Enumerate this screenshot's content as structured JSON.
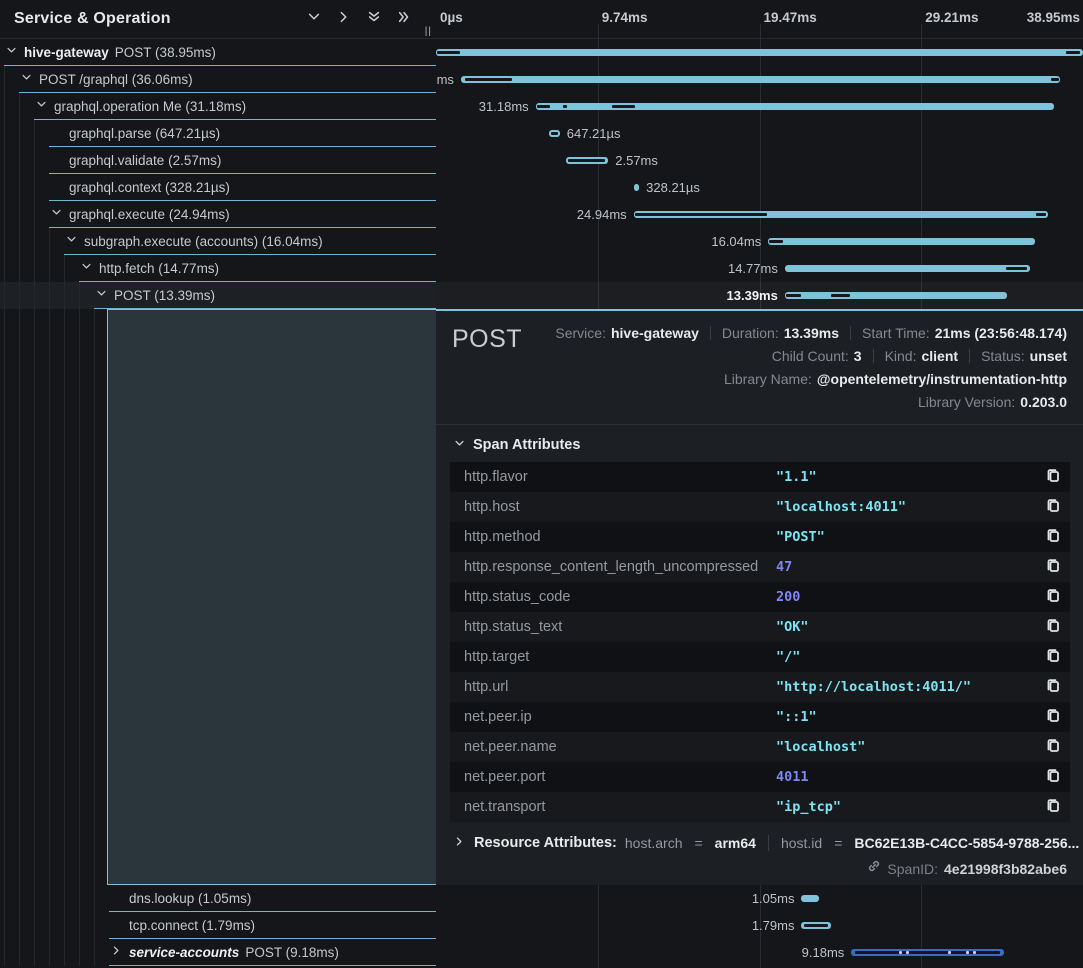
{
  "header": {
    "title": "Service & Operation",
    "icons": [
      "chevron-down",
      "chevron-right",
      "double-chevron-down",
      "double-chevron-right"
    ],
    "resize_handle": "||"
  },
  "timeline": {
    "total_ms": 38.95,
    "ticks": [
      "0µs",
      "9.74ms",
      "19.47ms",
      "29.21ms",
      "38.95ms"
    ],
    "bar_color": "#7ec3da",
    "alt_bar_color": "#3d6ac0"
  },
  "spans": [
    {
      "service": "hive-gateway",
      "label": "POST (38.95ms)",
      "level": 0,
      "chevron": "down",
      "start_ms": 0,
      "end_ms": 38.95,
      "dur_label": "38.95ms",
      "label_side": "left",
      "marks": [
        [
          0.05,
          1.45
        ],
        [
          37.9,
          38.8
        ]
      ]
    },
    {
      "label": "POST /graphql (36.06ms)",
      "level": 1,
      "chevron": "down",
      "start_ms": 1.5,
      "end_ms": 37.56,
      "dur_label": "36.06ms",
      "label_side": "left",
      "marks": [
        [
          1.75,
          4.6
        ],
        [
          37.0,
          37.5
        ]
      ]
    },
    {
      "label": "graphql.operation Me (31.18ms)",
      "level": 2,
      "chevron": "down",
      "start_ms": 6.0,
      "end_ms": 37.18,
      "dur_label": "31.18ms",
      "label_side": "left",
      "marks": [
        [
          6.1,
          6.85
        ],
        [
          7.65,
          7.9
        ],
        [
          10.6,
          12.0
        ]
      ]
    },
    {
      "label": "graphql.parse (647.21µs)",
      "level": 3,
      "chevron": null,
      "start_ms": 6.8,
      "end_ms": 7.45,
      "dur_label": "647.21µs",
      "label_side": "right",
      "marks": [
        [
          6.93,
          7.33
        ]
      ]
    },
    {
      "label": "graphql.validate (2.57ms)",
      "level": 3,
      "chevron": null,
      "start_ms": 7.8,
      "end_ms": 10.37,
      "dur_label": "2.57ms",
      "label_side": "right",
      "marks": [
        [
          7.95,
          10.2
        ]
      ]
    },
    {
      "label": "graphql.context (328.21µs)",
      "level": 3,
      "chevron": null,
      "start_ms": 11.9,
      "end_ms": 12.23,
      "dur_label": "328.21µs",
      "label_side": "right",
      "marks": []
    },
    {
      "label": "graphql.execute (24.94ms)",
      "level": 3,
      "chevron": "down",
      "start_ms": 11.9,
      "end_ms": 36.84,
      "dur_label": "24.94ms",
      "label_side": "left",
      "marks": [
        [
          12.0,
          19.9
        ],
        [
          36.1,
          36.75
        ]
      ]
    },
    {
      "label": "subgraph.execute (accounts) (16.04ms)",
      "level": 4,
      "chevron": "down",
      "start_ms": 20.0,
      "end_ms": 36.04,
      "dur_label": "16.04ms",
      "label_side": "left",
      "marks": [
        [
          20.05,
          20.9
        ]
      ]
    },
    {
      "label": "http.fetch (14.77ms)",
      "level": 5,
      "chevron": "down",
      "start_ms": 21.0,
      "end_ms": 35.77,
      "dur_label": "14.77ms",
      "label_side": "left",
      "marks": [
        [
          34.3,
          35.6
        ]
      ]
    },
    {
      "label": "POST (13.39ms)",
      "level": 6,
      "chevron": "down",
      "start_ms": 21.0,
      "end_ms": 34.39,
      "dur_label": "13.39ms",
      "label_side": "left",
      "selected": true,
      "marks": [
        [
          21.05,
          21.95
        ],
        [
          23.8,
          24.9
        ]
      ]
    },
    {
      "label": "dns.lookup (1.05ms)",
      "level": 7,
      "chevron": null,
      "start_ms": 22.0,
      "end_ms": 23.05,
      "dur_label": "1.05ms",
      "label_side": "left",
      "marks": [],
      "after_detail": true
    },
    {
      "label": "tcp.connect (1.79ms)",
      "level": 7,
      "chevron": null,
      "start_ms": 22.0,
      "end_ms": 23.79,
      "dur_label": "1.79ms",
      "label_side": "left",
      "marks": [
        [
          22.15,
          23.6
        ]
      ],
      "after_detail": true
    },
    {
      "service": "service-accounts",
      "service_italic": true,
      "label": "POST (9.18ms)",
      "level": 7,
      "chevron": "right",
      "start_ms": 25.0,
      "end_ms": 34.18,
      "dur_label": "9.18ms",
      "label_side": "left",
      "color": "#3d6ac0",
      "marks": [
        [
          25.2,
          33.95
        ]
      ],
      "light_marks": [
        27.9,
        28.3,
        30.8,
        31.9,
        32.3
      ],
      "after_detail": true
    }
  ],
  "detail": {
    "title": "POST",
    "meta_lines": [
      [
        {
          "label": "Service:",
          "value": "hive-gateway"
        },
        {
          "label": "Duration:",
          "value": "13.39ms"
        },
        {
          "label": "Start Time:",
          "value": "21ms (23:56:48.174)"
        }
      ],
      [
        {
          "label": "Child Count:",
          "value": "3"
        },
        {
          "label": "Kind:",
          "value": "client"
        },
        {
          "label": "Status:",
          "value": "unset"
        }
      ],
      [
        {
          "label": "Library Name:",
          "value": "@opentelemetry/instrumentation-http"
        }
      ],
      [
        {
          "label": "Library Version:",
          "value": "0.203.0"
        }
      ]
    ],
    "span_attributes_title": "Span Attributes",
    "attributes": [
      {
        "key": "http.flavor",
        "value": "\"1.1\"",
        "type": "string"
      },
      {
        "key": "http.host",
        "value": "\"localhost:4011\"",
        "type": "string"
      },
      {
        "key": "http.method",
        "value": "\"POST\"",
        "type": "string"
      },
      {
        "key": "http.response_content_length_uncompressed",
        "value": "47",
        "type": "number"
      },
      {
        "key": "http.status_code",
        "value": "200",
        "type": "number"
      },
      {
        "key": "http.status_text",
        "value": "\"OK\"",
        "type": "string"
      },
      {
        "key": "http.target",
        "value": "\"/\"",
        "type": "string"
      },
      {
        "key": "http.url",
        "value": "\"http://localhost:4011/\"",
        "type": "string"
      },
      {
        "key": "net.peer.ip",
        "value": "\"::1\"",
        "type": "string"
      },
      {
        "key": "net.peer.name",
        "value": "\"localhost\"",
        "type": "string"
      },
      {
        "key": "net.peer.port",
        "value": "4011",
        "type": "number"
      },
      {
        "key": "net.transport",
        "value": "\"ip_tcp\"",
        "type": "string"
      }
    ],
    "resource_attributes_title": "Resource Attributes:",
    "resource_attributes": [
      {
        "key": "host.arch",
        "value": "arm64"
      },
      {
        "key": "host.id",
        "value": "BC62E13B-C4CC-5854-9788-256..."
      }
    ],
    "span_id_label": "SpanID:",
    "span_id": "4e21998f3b82abe6"
  }
}
